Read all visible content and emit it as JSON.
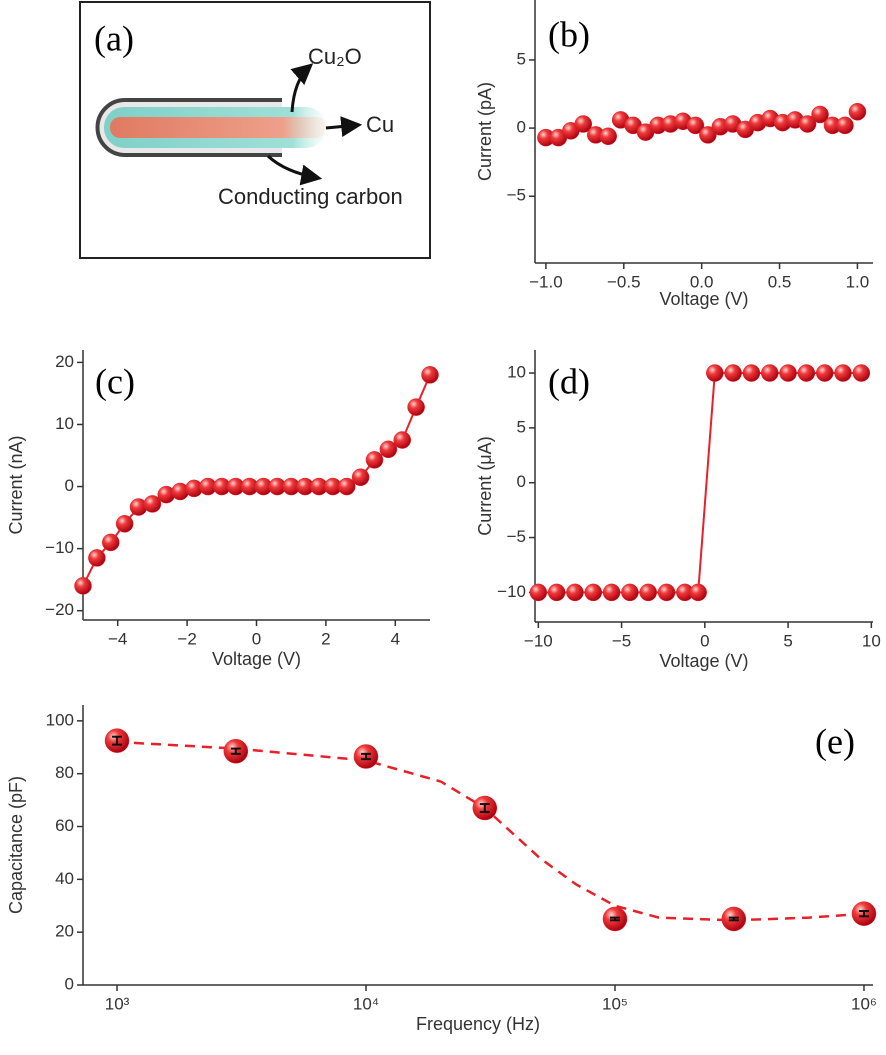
{
  "schematic": {
    "panel_label": "(a)",
    "labels": [
      "Cu₂O",
      "Cu",
      "Conducting carbon"
    ]
  },
  "chart_data": [
    {
      "type": "scatter",
      "panel_label": "(b)",
      "x_label": "Voltage (V)",
      "y_label": "Current (pA)",
      "color": "#e8202a",
      "x": [
        -1.0,
        -0.92,
        -0.84,
        -0.76,
        -0.68,
        -0.6,
        -0.52,
        -0.44,
        -0.36,
        -0.28,
        -0.2,
        -0.12,
        -0.04,
        0.04,
        0.12,
        0.2,
        0.28,
        0.36,
        0.44,
        0.52,
        0.6,
        0.68,
        0.76,
        0.84,
        0.92,
        1.0
      ],
      "values": [
        -0.7,
        -0.7,
        -0.2,
        0.3,
        -0.5,
        -0.6,
        0.6,
        0.2,
        -0.3,
        0.2,
        0.3,
        0.5,
        0.2,
        -0.5,
        0.1,
        0.3,
        -0.1,
        0.4,
        0.7,
        0.4,
        0.6,
        0.3,
        1.0,
        0.2,
        0.2,
        1.2
      ],
      "xlim": [
        -1.07,
        1.1
      ],
      "ylim": [
        -9.9,
        9.4
      ],
      "xticks": [
        {
          "value": -1.0,
          "label": "−1.0"
        },
        {
          "value": -0.5,
          "label": "−0.5"
        },
        {
          "value": 0,
          "label": "0.0"
        },
        {
          "value": 0.5,
          "label": "0.5"
        },
        {
          "value": 1.0,
          "label": "1.0"
        }
      ],
      "yticks": [
        {
          "value": -5,
          "label": "−5"
        },
        0,
        5
      ]
    },
    {
      "type": "line",
      "panel_label": "(c)",
      "x_label": "Voltage (V)",
      "y_label": "Current (nA)",
      "color": "#e8202a",
      "x": [
        -5.0,
        -4.6,
        -4.2,
        -3.8,
        -3.4,
        -3.0,
        -2.6,
        -2.2,
        -1.8,
        -1.4,
        -1.0,
        -0.6,
        -0.2,
        0.2,
        0.6,
        1.0,
        1.4,
        1.8,
        2.2,
        2.6,
        3.0,
        3.4,
        3.8,
        4.2,
        4.6,
        5.0
      ],
      "values": [
        -16,
        -11.5,
        -9,
        -6,
        -3.3,
        -2.8,
        -1.3,
        -0.8,
        -0.3,
        0,
        0,
        0,
        0,
        0,
        0,
        0,
        0,
        0,
        0,
        0,
        1.5,
        4.3,
        6.0,
        7.5,
        12.8,
        18
      ],
      "xlim": [
        -5,
        5
      ],
      "ylim": [
        -21.5,
        22
      ],
      "xticks": [
        {
          "value": -4,
          "label": "−4"
        },
        {
          "value": -2,
          "label": "−2"
        },
        0,
        2,
        4
      ],
      "yticks": [
        {
          "value": -20,
          "label": "−20"
        },
        {
          "value": -10,
          "label": "−10"
        },
        0,
        10,
        20
      ]
    },
    {
      "type": "line",
      "panel_label": "(d)",
      "x_label": "Voltage (V)",
      "y_label": "Current (μA)",
      "color": "#e8202a",
      "x": [
        -10,
        -8.9,
        -7.8,
        -6.7,
        -5.6,
        -4.5,
        -3.4,
        -2.3,
        -1.2,
        -0.4,
        0.6,
        1.7,
        2.8,
        3.9,
        5.0,
        6.1,
        7.2,
        8.3,
        9.4
      ],
      "values": [
        -10,
        -10,
        -10,
        -10,
        -10,
        -10,
        -10,
        -10,
        -10,
        -10,
        10,
        10,
        10,
        10,
        10,
        10,
        10,
        10,
        10
      ],
      "xlim": [
        -10.2,
        10.1
      ],
      "ylim": [
        -12.7,
        12.1
      ],
      "xticks": [
        {
          "value": -10,
          "label": "−10"
        },
        {
          "value": -5,
          "label": "−5"
        },
        0,
        5,
        10
      ],
      "yticks": [
        {
          "value": -10,
          "label": "−10"
        },
        {
          "value": -5,
          "label": "−5"
        },
        0,
        5,
        10
      ]
    },
    {
      "type": "errorbar",
      "panel_label": "(e)",
      "x_label": "Frequency (Hz)",
      "y_label": "Capacitance (pF)",
      "color": "#e8202a",
      "xscale": "log",
      "x": [
        1000,
        3000,
        10000,
        30000,
        100000,
        300000,
        1000000
      ],
      "values": [
        92.5,
        88.5,
        86.5,
        67,
        25,
        25,
        27
      ],
      "errors": [
        1.5,
        1,
        1,
        1.5,
        0.5,
        0.5,
        1
      ],
      "fit": {
        "linestyle": "dashed",
        "color": "#e8202a",
        "x": [
          1000,
          3000,
          10000,
          20000,
          30000,
          50000,
          70000,
          100000,
          150000,
          300000,
          600000,
          1000000
        ],
        "values": [
          92,
          89.5,
          85,
          77,
          67,
          48,
          38,
          30,
          25.5,
          24.5,
          25.5,
          27
        ]
      },
      "xlim": [
        730,
        1087000
      ],
      "ylim": [
        0,
        106
      ],
      "xticks": [
        {
          "value": 1000,
          "label": "10³"
        },
        {
          "value": 10000,
          "label": "10⁴"
        },
        {
          "value": 100000,
          "label": "10⁵"
        },
        {
          "value": 1000000,
          "label": "10⁶"
        }
      ],
      "yticks": [
        0,
        20,
        40,
        60,
        80,
        100
      ]
    }
  ]
}
